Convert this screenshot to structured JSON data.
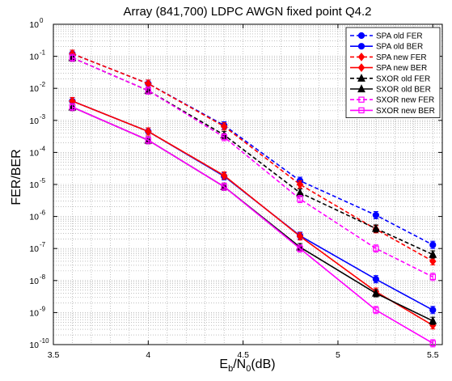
{
  "chart_data": {
    "type": "line",
    "title": "Array (841,700) LDPC AWGN fixed point Q4.2",
    "xlabel_main": "E",
    "xlabel_sub1": "b",
    "xlabel_mid": "/N",
    "xlabel_sub2": "0",
    "xlabel_tail": "(dB)",
    "ylabel": "FER/BER",
    "x_scale": "linear",
    "y_scale": "log",
    "xlim": [
      3.5,
      5.55
    ],
    "ylim_exp": [
      -10,
      0
    ],
    "grid": true,
    "legend_position": "top-right",
    "x_ticks": [
      {
        "v": 3.5,
        "label": "3.5"
      },
      {
        "v": 4,
        "label": "4"
      },
      {
        "v": 4.5,
        "label": "4.5"
      },
      {
        "v": 5,
        "label": "5"
      },
      {
        "v": 5.5,
        "label": "5.5"
      }
    ],
    "y_ticks": [
      {
        "e": 0,
        "base": "10",
        "exp": "0"
      },
      {
        "e": -1,
        "base": "10",
        "exp": "-1"
      },
      {
        "e": -2,
        "base": "10",
        "exp": "-2"
      },
      {
        "e": -3,
        "base": "10",
        "exp": "-3"
      },
      {
        "e": -4,
        "base": "10",
        "exp": "-4"
      },
      {
        "e": -5,
        "base": "10",
        "exp": "-5"
      },
      {
        "e": -6,
        "base": "10",
        "exp": "-6"
      },
      {
        "e": -7,
        "base": "10",
        "exp": "-7"
      },
      {
        "e": -8,
        "base": "10",
        "exp": "-8"
      },
      {
        "e": -9,
        "base": "10",
        "exp": "-9"
      },
      {
        "e": -10,
        "base": "10",
        "exp": "-10"
      }
    ],
    "series": [
      {
        "name": "SPA old FER",
        "color": "#0000ff",
        "dash": true,
        "marker": "circle",
        "x": [
          3.6,
          4.0,
          4.4,
          4.8,
          5.2,
          5.5
        ],
        "y": [
          0.12,
          0.014,
          0.0007,
          1.3e-05,
          1.1e-06,
          1.3e-07
        ]
      },
      {
        "name": "SPA old BER",
        "color": "#0000ff",
        "dash": false,
        "marker": "circle",
        "x": [
          3.6,
          4.0,
          4.4,
          4.8,
          5.2,
          5.5
        ],
        "y": [
          0.004,
          0.00045,
          1.8e-05,
          2.5e-07,
          1.1e-08,
          1.2e-09
        ]
      },
      {
        "name": "SPA new FER",
        "color": "#ff0000",
        "dash": true,
        "marker": "diamond",
        "x": [
          3.6,
          4.0,
          4.4,
          4.8,
          5.2,
          5.5
        ],
        "y": [
          0.12,
          0.014,
          0.00065,
          1e-05,
          4e-07,
          4e-08
        ]
      },
      {
        "name": "SPA new BER",
        "color": "#ff0000",
        "dash": false,
        "marker": "diamond",
        "x": [
          3.6,
          4.0,
          4.4,
          4.8,
          5.2,
          5.5
        ],
        "y": [
          0.004,
          0.00045,
          1.9e-05,
          2.4e-07,
          4.5e-09,
          4e-10
        ]
      },
      {
        "name": "SXOR old FER",
        "color": "#000000",
        "dash": true,
        "marker": "triangle",
        "x": [
          3.6,
          4.0,
          4.4,
          4.8,
          5.2,
          5.5
        ],
        "y": [
          0.09,
          0.0085,
          0.00035,
          5.5e-06,
          4.2e-07,
          6.5e-08
        ]
      },
      {
        "name": "SXOR old BER",
        "color": "#000000",
        "dash": false,
        "marker": "triangle",
        "x": [
          3.6,
          4.0,
          4.4,
          4.8,
          5.2,
          5.5
        ],
        "y": [
          0.0026,
          0.00024,
          8.5e-06,
          1.1e-07,
          4e-09,
          5.5e-10
        ]
      },
      {
        "name": "SXOR new FER",
        "color": "#ff00ff",
        "dash": true,
        "marker": "square",
        "x": [
          3.6,
          4.0,
          4.4,
          4.8,
          5.2,
          5.5
        ],
        "y": [
          0.09,
          0.0085,
          0.0003,
          3.5e-06,
          1e-07,
          1.3e-08
        ]
      },
      {
        "name": "SXOR new BER",
        "color": "#ff00ff",
        "dash": false,
        "marker": "square",
        "x": [
          3.6,
          4.0,
          4.4,
          4.8,
          5.2,
          5.5
        ],
        "y": [
          0.0026,
          0.00024,
          8.5e-06,
          1e-07,
          1.2e-09,
          1.1e-10
        ]
      }
    ]
  }
}
